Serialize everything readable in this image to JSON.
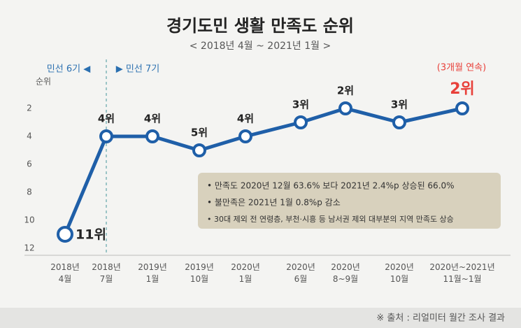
{
  "chart_data": {
    "type": "line",
    "title": "경기도민 생활 만족도 순위",
    "subtitle": "< 2018년  4월 ~ 2021년  1월 >",
    "ylabel": "순위",
    "categories": [
      "2018년\n4월",
      "2018년\n7월",
      "2019년\n1월",
      "2019년\n10월",
      "2020년\n1월",
      "2020년\n6월",
      "2020년\n8~9월",
      "2020년\n10월",
      "2020년~2021년\n11월~1월"
    ],
    "values": [
      11,
      4,
      4,
      5,
      4,
      3,
      2,
      3,
      2
    ],
    "value_labels": [
      "11위",
      "4위",
      "4위",
      "5위",
      "4위",
      "3위",
      "2위",
      "3위",
      "2위"
    ],
    "color": "#1f5fa8",
    "highlight_color": "#e8403a",
    "ylim": [
      0,
      12.25
    ],
    "invert_y": true,
    "yticks": [
      2,
      4,
      6,
      8,
      10,
      12
    ],
    "annotations": {
      "before": "민선 6기 ◀",
      "after": "▶ 민선 7기",
      "streak": "(3개월 연속)"
    },
    "notes": [
      "• 만족도 2020년 12월 63.6% 보다 2021년 2.4%p 상승된 66.0%",
      "• 불만족은 2021년 1월  0.8%p  감소",
      "• 30대 제외 전 연령층, 부천·시흥 등 남서권 제외 대부분의 지역 만족도 상승"
    ],
    "source": "※ 출처 : 리얼미터 월간 조사 결과"
  }
}
